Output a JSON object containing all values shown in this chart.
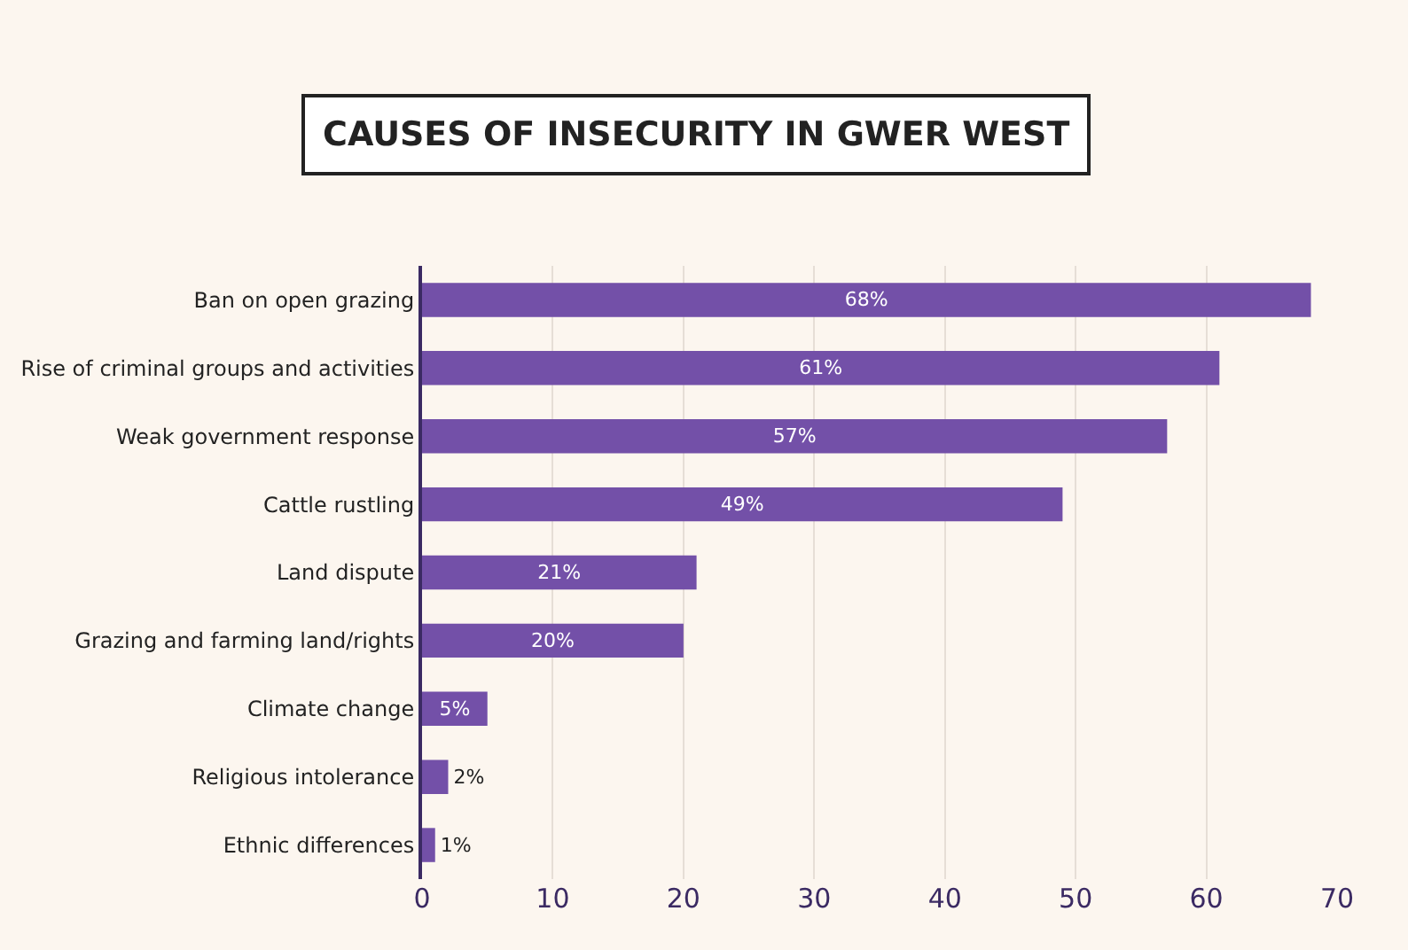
{
  "chart_data": {
    "type": "bar",
    "orientation": "horizontal",
    "title": "CAUSES OF INSECURITY IN GWER WEST",
    "categories": [
      "Ban on open grazing",
      "Rise of criminal groups and activities",
      "Weak government response",
      "Cattle rustling",
      "Land dispute",
      "Grazing and farming land/rights",
      "Climate change",
      "Religious intolerance",
      "Ethnic differences"
    ],
    "values": [
      68,
      61,
      57,
      49,
      21,
      20,
      5,
      2,
      1
    ],
    "value_labels": [
      "68%",
      "61%",
      "57%",
      "49%",
      "21%",
      "20%",
      "5%",
      "2%",
      "1%"
    ],
    "color": "#7350a8",
    "xlim": [
      0,
      70
    ],
    "xticks": [
      0,
      10,
      20,
      30,
      40,
      50,
      60,
      70
    ],
    "grid": "x",
    "legend": false
  }
}
